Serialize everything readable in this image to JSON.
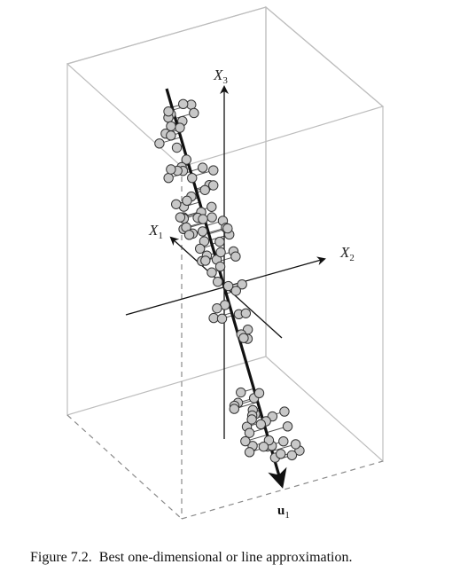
{
  "axes": {
    "x1": {
      "letter": "X",
      "sub": "1"
    },
    "x2": {
      "letter": "X",
      "sub": "2"
    },
    "x3": {
      "letter": "X",
      "sub": "3"
    }
  },
  "direction_vector": {
    "letter": "u",
    "sub": "1"
  },
  "caption": {
    "number": "Figure 7.2.",
    "text": "Best one-dimensional or line approximation."
  },
  "colors": {
    "box_edge": "#bdbdbd",
    "dashed_edge": "#8a8a8a",
    "point_fill": "#c8c8c8",
    "point_stroke": "#333333",
    "axis": "#111111",
    "projection_line": "#111111",
    "residual": "#555555"
  }
}
